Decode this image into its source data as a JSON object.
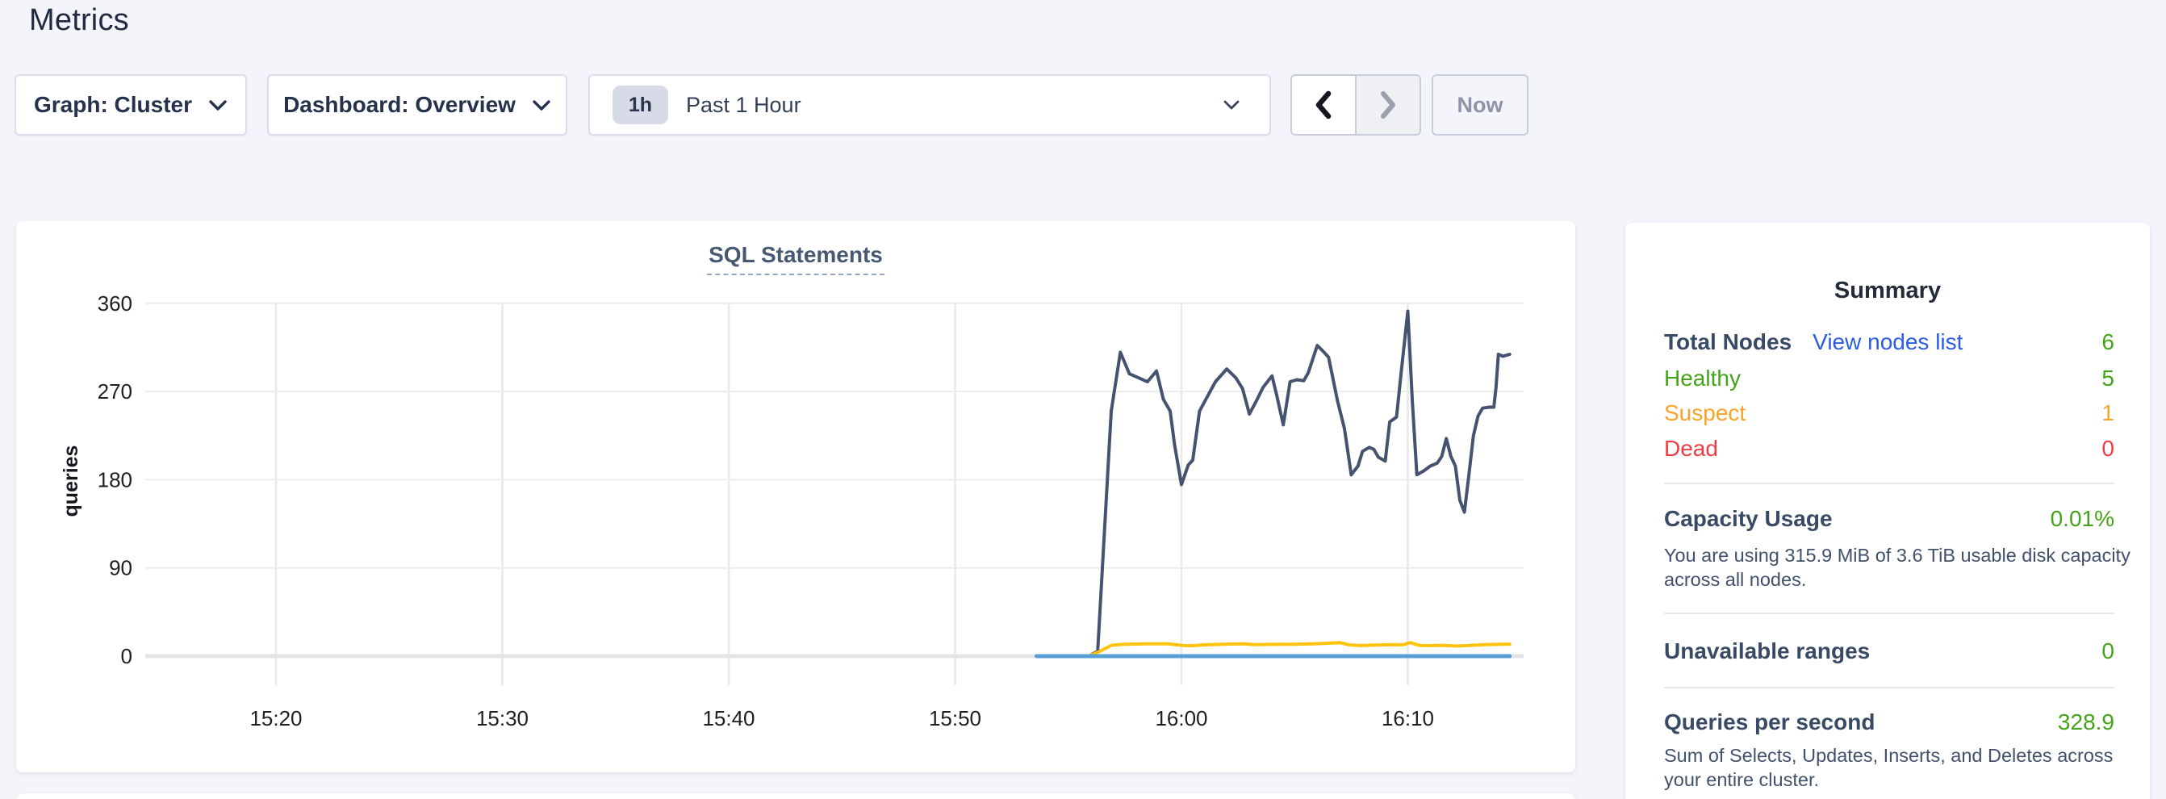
{
  "page": {
    "title": "Metrics"
  },
  "toolbar": {
    "graph_dropdown_label": "Graph: Cluster",
    "dashboard_dropdown_label": "Dashboard: Overview",
    "time_selector": {
      "badge": "1h",
      "label": "Past 1 Hour"
    },
    "now_button_label": "Now"
  },
  "colors": {
    "green": "#43a417",
    "orange": "#f7a42a",
    "red": "#ef3d45",
    "link_blue": "#2a5ce4",
    "grid_h": "#ececec",
    "grid_v": "#e9e9eb",
    "grid_zero": "#e4e4e6",
    "axis_text": "#1d1f23"
  },
  "chart_data": {
    "type": "line",
    "title": "SQL Statements",
    "ylabel": "queries",
    "xlabel": "",
    "grid": true,
    "legend_position": "none",
    "ylim": [
      0,
      360
    ],
    "y_ticks": [
      0,
      90,
      180,
      270,
      360
    ],
    "x_domain_minutes_after_1500": [
      15,
      75
    ],
    "x_ticks": [
      {
        "label": "15:20",
        "m": 20
      },
      {
        "label": "15:30",
        "m": 30
      },
      {
        "label": "15:40",
        "m": 40
      },
      {
        "label": "15:50",
        "m": 50
      },
      {
        "label": "16:00",
        "m": 60
      },
      {
        "label": "16:10",
        "m": 70
      }
    ],
    "series": [
      {
        "name": "sql-statements-navy",
        "color": "#45536e",
        "width": 4,
        "points": [
          [
            53.6,
            0
          ],
          [
            55.9,
            0
          ],
          [
            56.3,
            5
          ],
          [
            56.9,
            250
          ],
          [
            57.3,
            310
          ],
          [
            57.7,
            288
          ],
          [
            58.1,
            284
          ],
          [
            58.5,
            280
          ],
          [
            58.9,
            291
          ],
          [
            59.2,
            262
          ],
          [
            59.5,
            250
          ],
          [
            59.7,
            215
          ],
          [
            60.0,
            175
          ],
          [
            60.3,
            195
          ],
          [
            60.5,
            200
          ],
          [
            60.8,
            250
          ],
          [
            61.1,
            263
          ],
          [
            61.5,
            280
          ],
          [
            62.0,
            293
          ],
          [
            62.4,
            284
          ],
          [
            62.7,
            273
          ],
          [
            63.0,
            247
          ],
          [
            63.3,
            260
          ],
          [
            63.6,
            274
          ],
          [
            64.0,
            286
          ],
          [
            64.2,
            267
          ],
          [
            64.5,
            236
          ],
          [
            64.8,
            280
          ],
          [
            65.1,
            282
          ],
          [
            65.4,
            281
          ],
          [
            65.6,
            289
          ],
          [
            66.0,
            317
          ],
          [
            66.3,
            310
          ],
          [
            66.5,
            305
          ],
          [
            66.9,
            260
          ],
          [
            67.2,
            232
          ],
          [
            67.5,
            185
          ],
          [
            67.8,
            194
          ],
          [
            68.0,
            209
          ],
          [
            68.3,
            213
          ],
          [
            68.5,
            211
          ],
          [
            68.7,
            203
          ],
          [
            69.0,
            199
          ],
          [
            69.2,
            239
          ],
          [
            69.5,
            244
          ],
          [
            69.7,
            288
          ],
          [
            70.0,
            352
          ],
          [
            70.2,
            260
          ],
          [
            70.4,
            185
          ],
          [
            70.7,
            189
          ],
          [
            71.0,
            194
          ],
          [
            71.3,
            197
          ],
          [
            71.5,
            204
          ],
          [
            71.7,
            222
          ],
          [
            71.9,
            204
          ],
          [
            72.1,
            194
          ],
          [
            72.3,
            159
          ],
          [
            72.5,
            147
          ],
          [
            72.7,
            185
          ],
          [
            72.9,
            225
          ],
          [
            73.1,
            245
          ],
          [
            73.3,
            253
          ],
          [
            73.6,
            254
          ],
          [
            73.8,
            254
          ],
          [
            73.9,
            275
          ],
          [
            74.0,
            308
          ],
          [
            74.2,
            306
          ],
          [
            74.5,
            308
          ]
        ]
      },
      {
        "name": "sql-statements-yellow",
        "color": "#fdc30d",
        "width": 4,
        "points": [
          [
            53.6,
            0
          ],
          [
            55.9,
            0
          ],
          [
            56.4,
            5
          ],
          [
            56.9,
            11
          ],
          [
            57.4,
            12
          ],
          [
            58.4,
            12.5
          ],
          [
            59.4,
            12.5
          ],
          [
            60.0,
            11
          ],
          [
            60.4,
            10.5
          ],
          [
            61.0,
            11.5
          ],
          [
            62.0,
            12.3
          ],
          [
            62.8,
            12.6
          ],
          [
            63.2,
            11.8
          ],
          [
            64.0,
            12
          ],
          [
            65.0,
            12.2
          ],
          [
            65.8,
            12.6
          ],
          [
            66.5,
            13.2
          ],
          [
            67.0,
            13.8
          ],
          [
            67.4,
            11.5
          ],
          [
            67.9,
            10.8
          ],
          [
            68.6,
            11.3
          ],
          [
            69.3,
            11.7
          ],
          [
            69.8,
            11.6
          ],
          [
            70.1,
            13.8
          ],
          [
            70.5,
            11
          ],
          [
            70.9,
            10.7
          ],
          [
            71.6,
            11
          ],
          [
            72.2,
            10.3
          ],
          [
            72.8,
            11
          ],
          [
            73.4,
            11.7
          ],
          [
            74.0,
            12
          ],
          [
            74.5,
            12.3
          ]
        ]
      },
      {
        "name": "sql-statements-blue",
        "color": "#56a0d5",
        "width": 5,
        "points": [
          [
            53.6,
            0
          ],
          [
            74.5,
            0
          ]
        ]
      }
    ]
  },
  "summary": {
    "title": "Summary",
    "total_nodes_label": "Total Nodes",
    "view_nodes_link": "View nodes list",
    "total_nodes_value": "6",
    "healthy_label": "Healthy",
    "healthy_value": "5",
    "suspect_label": "Suspect",
    "suspect_value": "1",
    "dead_label": "Dead",
    "dead_value": "0",
    "capacity_label": "Capacity Usage",
    "capacity_value": "0.01%",
    "capacity_desc": "You are using 315.9 MiB of 3.6 TiB usable disk capacity across all nodes.",
    "unavailable_label": "Unavailable ranges",
    "unavailable_value": "0",
    "qps_label": "Queries per second",
    "qps_value": "328.9",
    "qps_desc": "Sum of Selects, Updates, Inserts, and Deletes across your entire cluster."
  }
}
